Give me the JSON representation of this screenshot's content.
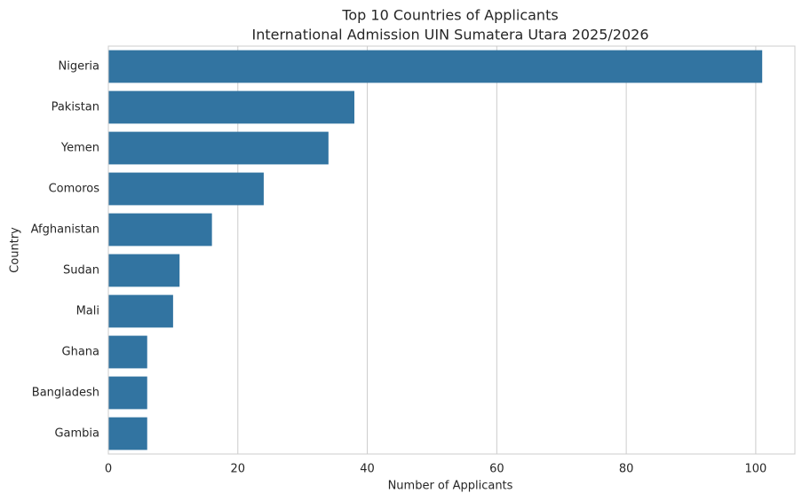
{
  "chart_data": {
    "type": "hbar",
    "title": "Top 10 Countries of Applicants",
    "subtitle": "International Admission UIN Sumatera Utara 2025/2026",
    "x_label": "Number of Applicants",
    "y_label": "Country",
    "categories": [
      "Nigeria",
      "Pakistan",
      "Yemen",
      "Comoros",
      "Afghanistan",
      "Sudan",
      "Mali",
      "Ghana",
      "Bangladesh",
      "Gambia"
    ],
    "values": [
      101,
      38,
      34,
      24,
      16,
      11,
      10,
      6,
      6,
      6
    ],
    "color": "#3274a1",
    "xlim": [
      0,
      106.05
    ],
    "xticks": [
      0,
      20,
      40,
      60,
      80,
      100
    ],
    "grid": true
  }
}
